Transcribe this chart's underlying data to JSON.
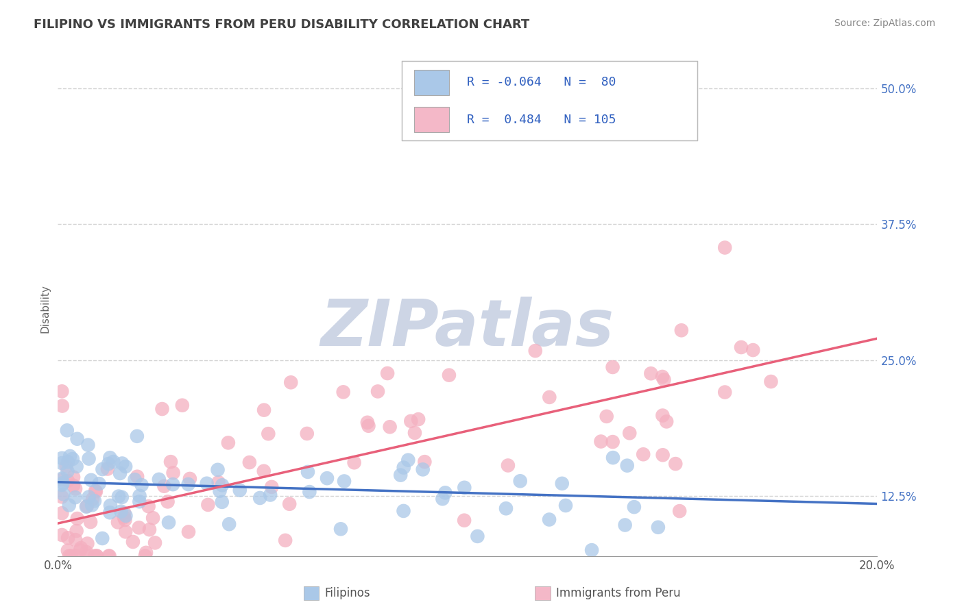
{
  "title": "FILIPINO VS IMMIGRANTS FROM PERU DISABILITY CORRELATION CHART",
  "source": "Source: ZipAtlas.com",
  "ylabel": "Disability",
  "x_min": 0.0,
  "x_max": 0.2,
  "y_min": 0.07,
  "y_max": 0.525,
  "y_ticks": [
    0.125,
    0.25,
    0.375,
    0.5
  ],
  "y_tick_labels": [
    "12.5%",
    "25.0%",
    "37.5%",
    "50.0%"
  ],
  "series": [
    {
      "name": "Filipinos",
      "R": -0.064,
      "N": 80,
      "color_scatter": "#aac8e8",
      "color_line": "#4472c4",
      "color_legend_patch": "#aac8e8",
      "slope": -0.1,
      "intercept": 0.138
    },
    {
      "name": "Immigrants from Peru",
      "R": 0.484,
      "N": 105,
      "color_scatter": "#f4afc0",
      "color_line": "#e8607a",
      "color_legend_patch": "#f4b8c8",
      "slope": 0.85,
      "intercept": 0.1
    }
  ],
  "watermark": "ZIPatlas",
  "watermark_color": "#cdd5e5",
  "background_color": "#ffffff",
  "grid_color": "#c8c8c8",
  "title_color": "#404040",
  "legend_text_color": "#3060c0"
}
